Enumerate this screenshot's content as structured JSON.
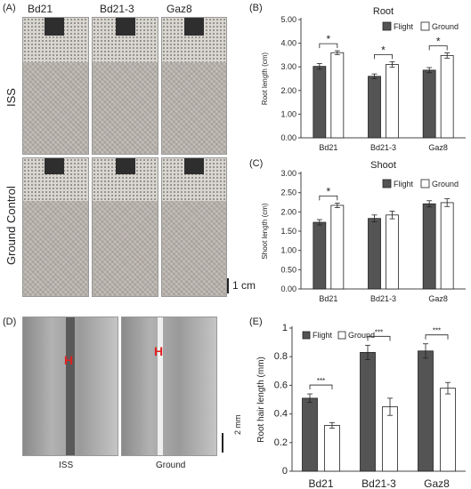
{
  "panels": {
    "a": {
      "letter": "(A)",
      "columns": [
        "Bd21",
        "Bd21-3",
        "Gaz8"
      ],
      "rows": [
        "ISS",
        "Ground Control"
      ],
      "scale": "1 cm"
    },
    "b": {
      "letter": "(B)"
    },
    "c": {
      "letter": "(C)"
    },
    "d": {
      "letter": "(D)",
      "captions": [
        "ISS",
        "Ground"
      ],
      "scale": "2 mm"
    },
    "e": {
      "letter": "(E)"
    }
  },
  "colors": {
    "flight": "#545454",
    "ground": "#ffffff"
  },
  "chart_data": [
    {
      "id": "root",
      "type": "bar",
      "title": "Root",
      "ylabel": "Root length (cm)",
      "categories": [
        "Bd21",
        "Bd21-3",
        "Gaz8"
      ],
      "ylim": [
        0,
        5
      ],
      "yticks": [
        "0.00",
        "1.00",
        "2.00",
        "3.00",
        "4.00",
        "5.00"
      ],
      "legend_position": "top-right",
      "series": [
        {
          "name": "Flight",
          "values": [
            3.02,
            2.6,
            2.86
          ],
          "errors": [
            0.12,
            0.1,
            0.11
          ]
        },
        {
          "name": "Ground",
          "values": [
            3.6,
            3.1,
            3.48
          ],
          "errors": [
            0.08,
            0.12,
            0.11
          ]
        }
      ],
      "significance": [
        "*",
        "*",
        "*"
      ]
    },
    {
      "id": "shoot",
      "type": "bar",
      "title": "Shoot",
      "ylabel": "Shoot length (cm)",
      "categories": [
        "Bd21",
        "Bd21-3",
        "Gaz8"
      ],
      "ylim": [
        0,
        3
      ],
      "yticks": [
        "0.00",
        "0.50",
        "1.00",
        "1.50",
        "2.00",
        "2.50",
        "3.00"
      ],
      "legend_position": "top-right",
      "series": [
        {
          "name": "Flight",
          "values": [
            1.73,
            1.83,
            2.21
          ],
          "errors": [
            0.07,
            0.09,
            0.08
          ]
        },
        {
          "name": "Ground",
          "values": [
            2.17,
            1.92,
            2.24
          ],
          "errors": [
            0.06,
            0.1,
            0.1
          ]
        }
      ],
      "significance": [
        "*",
        "",
        ""
      ]
    },
    {
      "id": "hair",
      "type": "bar",
      "ylabel": "Root hair length (mm)",
      "categories": [
        "Bd21",
        "Bd21-3",
        "Gaz8"
      ],
      "ylim": [
        0,
        1
      ],
      "yticks": [
        "0",
        "0.2",
        "0.4",
        "0.6",
        "0.8",
        "1"
      ],
      "legend_position": "top-left",
      "series": [
        {
          "name": "Flight",
          "values": [
            0.51,
            0.83,
            0.84
          ],
          "errors": [
            0.03,
            0.05,
            0.05
          ]
        },
        {
          "name": "Ground",
          "values": [
            0.32,
            0.45,
            0.58
          ],
          "errors": [
            0.02,
            0.06,
            0.04
          ]
        }
      ],
      "significance": [
        "***",
        "***",
        "***"
      ]
    }
  ]
}
